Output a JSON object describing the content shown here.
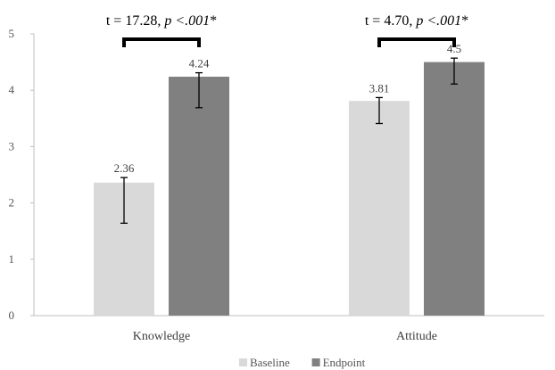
{
  "chart_data": {
    "type": "bar",
    "title": "",
    "xlabel": "",
    "ylabel": "",
    "ylim": [
      0,
      5
    ],
    "yticks": [
      0,
      1,
      2,
      3,
      4,
      5
    ],
    "categories": [
      "Knowledge",
      "Attitude"
    ],
    "series": [
      {
        "name": "Baseline",
        "color": "#d9d9d9",
        "values": [
          2.36,
          3.81
        ],
        "value_labels": [
          "2.36",
          "3.81"
        ],
        "error_low": [
          1.64,
          3.41
        ],
        "error_high": [
          2.45,
          3.87
        ]
      },
      {
        "name": "Endpoint",
        "color": "#808080",
        "values": [
          4.24,
          4.5
        ],
        "value_labels": [
          "4.24",
          "4.5"
        ],
        "error_low": [
          3.69,
          4.11
        ],
        "error_high": [
          4.31,
          4.57
        ]
      }
    ],
    "annotations": [
      {
        "category": "Knowledge",
        "text_main": "t = 17.28, ",
        "text_p": "p <.001",
        "text_star": "*"
      },
      {
        "category": "Attitude",
        "text_main": "t = 4.70, ",
        "text_p": "p <.001",
        "text_star": "*"
      }
    ],
    "legend": "bottom",
    "grid": false
  }
}
